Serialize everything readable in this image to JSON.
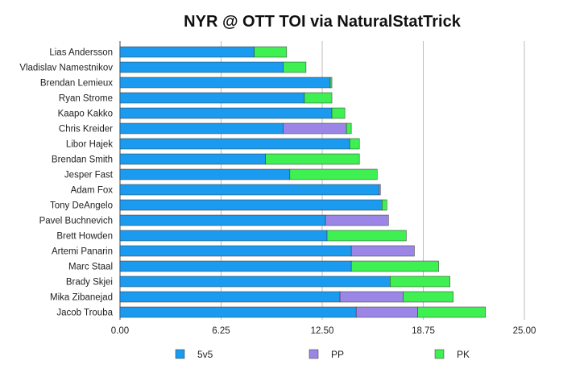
{
  "chart_data": {
    "type": "bar",
    "orientation": "horizontal",
    "stacked": true,
    "title": "NYR @ OTT TOI via NaturalStatTrick",
    "xlabel": "",
    "ylabel": "",
    "xlim": [
      0,
      25
    ],
    "xticks": [
      "0.00",
      "6.25",
      "12.50",
      "18.75",
      "25.00"
    ],
    "grid": true,
    "legend_position": "bottom",
    "categories": [
      "Lias Andersson",
      "Vladislav Namestnikov",
      "Brendan Lemieux",
      "Ryan Strome",
      "Kaapo Kakko",
      "Chris Kreider",
      "Libor Hajek",
      "Brendan Smith",
      "Jesper Fast",
      "Adam Fox",
      "Tony DeAngelo",
      "Pavel Buchnevich",
      "Brett Howden",
      "Artemi Panarin",
      "Marc Staal",
      "Brady Skjei",
      "Mika Zibanejad",
      "Jacob Trouba"
    ],
    "series": [
      {
        "name": "5v5",
        "color": "#1a9bf0",
        "values": [
          8.3,
          10.1,
          13.0,
          11.4,
          13.1,
          10.1,
          14.2,
          9.0,
          10.5,
          16.0,
          16.2,
          12.7,
          12.8,
          14.3,
          14.3,
          16.7,
          13.6,
          14.6
        ]
      },
      {
        "name": "PP",
        "color": "#9b86e8",
        "values": [
          0,
          0,
          0,
          0,
          0,
          3.9,
          0,
          0,
          0,
          0.1,
          0,
          3.9,
          0,
          3.9,
          0,
          0,
          3.9,
          3.8
        ]
      },
      {
        "name": "PK",
        "color": "#3ef051",
        "values": [
          2.0,
          1.4,
          0.1,
          1.7,
          0.8,
          0.3,
          0.6,
          5.8,
          5.4,
          0,
          0.3,
          0,
          4.9,
          0,
          5.4,
          3.7,
          3.1,
          4.2
        ]
      }
    ]
  }
}
